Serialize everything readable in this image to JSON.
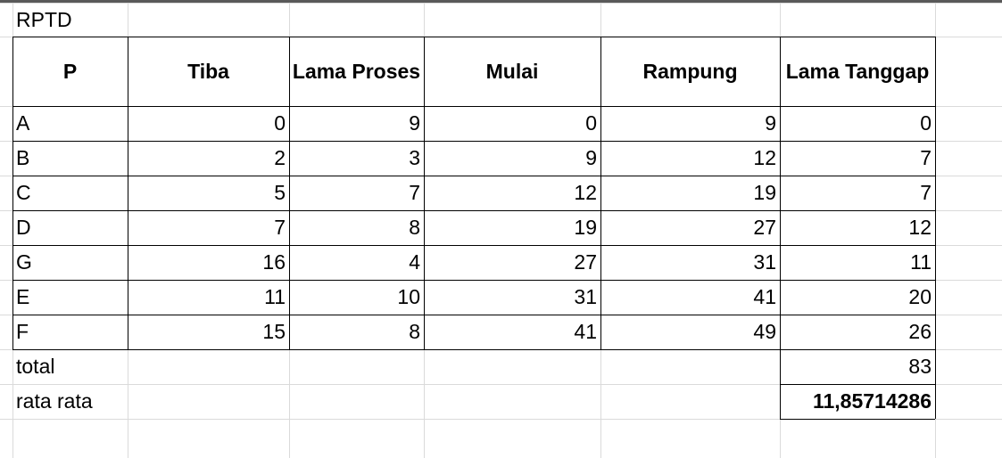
{
  "sheet": {
    "title": "RPTD",
    "headers": [
      "P",
      "Tiba",
      "Lama Proses",
      "Mulai",
      "Rampung",
      "Lama Tanggap"
    ],
    "rows": [
      [
        "A",
        "0",
        "9",
        "0",
        "9",
        "0"
      ],
      [
        "B",
        "2",
        "3",
        "9",
        "12",
        "7"
      ],
      [
        "C",
        "5",
        "7",
        "12",
        "19",
        "7"
      ],
      [
        "D",
        "7",
        "8",
        "19",
        "27",
        "12"
      ],
      [
        "G",
        "16",
        "4",
        "27",
        "31",
        "11"
      ],
      [
        "E",
        "11",
        "10",
        "31",
        "41",
        "20"
      ],
      [
        "F",
        "15",
        "8",
        "41",
        "49",
        "26"
      ]
    ],
    "total_label": "total",
    "total_value": "83",
    "average_label": "rata rata",
    "average_value": "11,85714286"
  }
}
